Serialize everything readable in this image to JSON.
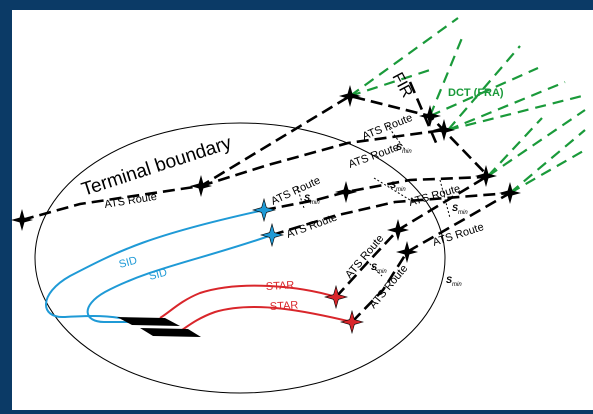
{
  "diagram": {
    "terminal_boundary": "Terminal boundary",
    "fir": "FIR",
    "dct": "DCT (FRA)",
    "ats_route": "ATS Route",
    "sid": "SID",
    "star": "STAR",
    "s_min_main": "S",
    "s_min_sub": "min",
    "colors": {
      "route": "#000000",
      "sid": "#1f9ad6",
      "star": "#d9262b",
      "dct": "#1a9a3a",
      "frame": "#0b3a66"
    }
  }
}
